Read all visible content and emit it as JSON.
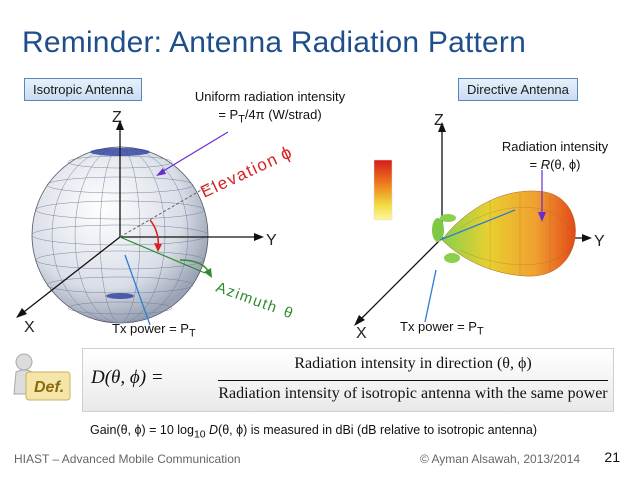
{
  "title": "Reminder: Antenna Radiation Pattern",
  "labels": {
    "isotropic": "Isotropic Antenna",
    "directive": "Directive Antenna"
  },
  "notes": {
    "uniform_line1": "Uniform radiation intensity",
    "uniform_line2_prefix": "= P",
    "uniform_line2_sub": "T",
    "uniform_line2_suffix": "/4π  (W/strad)",
    "radint_line1": "Radiation intensity",
    "radint_line2_prefix": "= ",
    "radint_line2_R": "R",
    "radint_line2_suffix": "(θ, ϕ)",
    "tx_left_prefix": "Tx power = P",
    "tx_left_sub": "T",
    "tx_right_prefix": "Tx power = P",
    "tx_right_sub": "T"
  },
  "axes": {
    "z": "Z",
    "y": "Y",
    "x": "X",
    "elevation": "Elevation",
    "elevation_symbol": "ϕ",
    "azimuth": "Azimuth",
    "azimuth_symbol": "θ"
  },
  "formula": {
    "lhs": "D(θ, ϕ) =",
    "numerator": "Radiation intensity in direction (θ, ϕ)",
    "denominator": "Radiation intensity of isotropic antenna with the same power",
    "badge": "Def."
  },
  "gain": {
    "text_before_sub": "Gain(θ, ϕ) = 10 log",
    "sub": "10",
    "text_D": "D",
    "text_after": "(θ, ϕ)  is measured in dBi (dB relative to isotropic antenna)"
  },
  "footer": {
    "left": "HIAST  – Advanced Mobile Communication",
    "right": "© Ayman Alsawah, 2013/2014",
    "page": "21"
  },
  "colors": {
    "title": "#1f4e8c",
    "arrow": "#6a2bd0",
    "elevation": "#d92020",
    "azimuth": "#2e8b2e",
    "pointer": "#2a7dd6"
  }
}
